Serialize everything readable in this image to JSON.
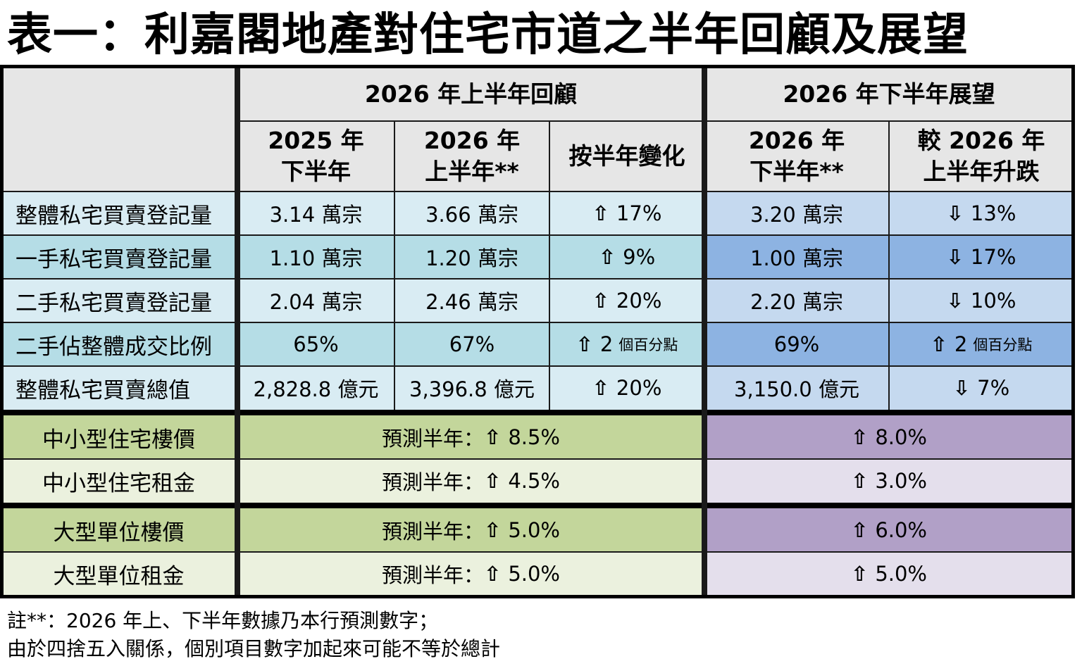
{
  "title": "表一：利嘉閣地產對住宅市道之半年回顧及展望",
  "colors": {
    "header_bg": "#e6e6e6",
    "left_row_light": "#d9ecf3",
    "left_row_dark": "#b5dde6",
    "right_row_light": "#c5d9ef",
    "right_row_dark": "#8db3e2",
    "label_green_dark": "#c3d69b",
    "label_green_light": "#ebf1de",
    "purple_dark": "#b1a0c7",
    "purple_light": "#e4dfec",
    "border": "#000000"
  },
  "header": {
    "group_review": "2026 年上半年回顧",
    "group_outlook": "2026 年下半年展望",
    "col1_line1": "2025 年",
    "col1_line2": "下半年",
    "col2_line1": "2026 年",
    "col2_line2": "上半年**",
    "col3": "按半年變化",
    "col4_line1": "2026 年",
    "col4_line2": "下半年**",
    "col5_line1": "較 2026 年",
    "col5_line2": "上半年升跌"
  },
  "rows": [
    {
      "label": "整體私宅買賣登記量",
      "h2_2025": "3.14 萬宗",
      "h1_2026": "3.66 萬宗",
      "change_arrow": "⇧",
      "change": "17%",
      "change_unit": "",
      "h2_2026": "3.20 萬宗",
      "vs_arrow": "⇩",
      "vs": "13%",
      "vs_unit": ""
    },
    {
      "label": "一手私宅買賣登記量",
      "h2_2025": "1.10 萬宗",
      "h1_2026": "1.20 萬宗",
      "change_arrow": "⇧",
      "change": "9%",
      "change_unit": "",
      "h2_2026": "1.00 萬宗",
      "vs_arrow": "⇩",
      "vs": "17%",
      "vs_unit": ""
    },
    {
      "label": "二手私宅買賣登記量",
      "h2_2025": "2.04 萬宗",
      "h1_2026": "2.46 萬宗",
      "change_arrow": "⇧",
      "change": "20%",
      "change_unit": "",
      "h2_2026": "2.20 萬宗",
      "vs_arrow": "⇩",
      "vs": "10%",
      "vs_unit": ""
    },
    {
      "label": "二手佔整體成交比例",
      "h2_2025": "65%",
      "h1_2026": "67%",
      "change_arrow": "⇧",
      "change": "2",
      "change_unit": "個百分點",
      "h2_2026": "69%",
      "vs_arrow": "⇧",
      "vs": "2",
      "vs_unit": "個百分點"
    },
    {
      "label": "整體私宅買賣總值",
      "h2_2025": "2,828.8 億元",
      "h1_2026": "3,396.8 億元",
      "change_arrow": "⇧",
      "change": "20%",
      "change_unit": "",
      "h2_2026": "3,150.0 億元",
      "vs_arrow": "⇩",
      "vs": "7%",
      "vs_unit": ""
    }
  ],
  "forecast_rows": [
    {
      "label": "中小型住宅樓價",
      "forecast_prefix": "預測半年：",
      "forecast_arrow": "⇧",
      "forecast": "8.5%",
      "outlook_arrow": "⇧",
      "outlook": "8.0%"
    },
    {
      "label": "中小型住宅租金",
      "forecast_prefix": "預測半年：",
      "forecast_arrow": "⇧",
      "forecast": "4.5%",
      "outlook_arrow": "⇧",
      "outlook": "3.0%"
    },
    {
      "label": "大型單位樓價",
      "forecast_prefix": "預測半年：",
      "forecast_arrow": "⇧",
      "forecast": "5.0%",
      "outlook_arrow": "⇧",
      "outlook": "6.0%"
    },
    {
      "label": "大型單位租金",
      "forecast_prefix": "預測半年：",
      "forecast_arrow": "⇧",
      "forecast": "5.0%",
      "outlook_arrow": "⇧",
      "outlook": "5.0%"
    }
  ],
  "notes": {
    "line1": "註**：2026 年上、下半年數據乃本行預測數字；",
    "line2": "由於四捨五入關係，個別項目數字加起來可能不等於總計"
  }
}
